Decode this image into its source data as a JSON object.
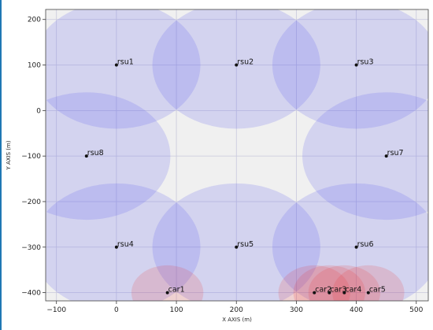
{
  "chart_data": {
    "type": "scatter",
    "title": "",
    "xlabel": "X AXIS (m)",
    "ylabel": "Y AXIS (m)",
    "xlim": [
      -118,
      520
    ],
    "ylim": [
      -418,
      222
    ],
    "xticks": [
      -100,
      0,
      100,
      200,
      300,
      400,
      500
    ],
    "yticks": [
      200,
      100,
      0,
      -100,
      -200,
      -300,
      -400
    ],
    "xtick_labels": [
      "−100",
      "0",
      "100",
      "200",
      "300",
      "400",
      "500"
    ],
    "ytick_labels": [
      "200",
      "100",
      "0",
      "−100",
      "−200",
      "−300",
      "−400"
    ],
    "grid": true,
    "colors": {
      "plot_background": "#f0f0f0",
      "rsu_coverage": "#5555ee",
      "car_coverage": "#ee3333",
      "grid": "#c8c8dc",
      "marker": "#111111",
      "left_edge": "#1f77b4"
    },
    "rsu_radius": 140,
    "car_radius": 60,
    "rsus": [
      {
        "label": "rsu1",
        "x": 0,
        "y": 100
      },
      {
        "label": "rsu2",
        "x": 200,
        "y": 100
      },
      {
        "label": "rsu3",
        "x": 400,
        "y": 100
      },
      {
        "label": "rsu4",
        "x": 0,
        "y": -300
      },
      {
        "label": "rsu5",
        "x": 200,
        "y": -300
      },
      {
        "label": "rsu6",
        "x": 400,
        "y": -300
      },
      {
        "label": "rsu7",
        "x": 450,
        "y": -100
      },
      {
        "label": "rsu8",
        "x": -50,
        "y": -100
      }
    ],
    "cars": [
      {
        "label": "car1",
        "x": 85,
        "y": -400
      },
      {
        "label": "car2",
        "x": 330,
        "y": -400
      },
      {
        "label": "car3",
        "x": 355,
        "y": -400
      },
      {
        "label": "car4",
        "x": 380,
        "y": -400
      },
      {
        "label": "car5",
        "x": 420,
        "y": -400
      }
    ]
  }
}
